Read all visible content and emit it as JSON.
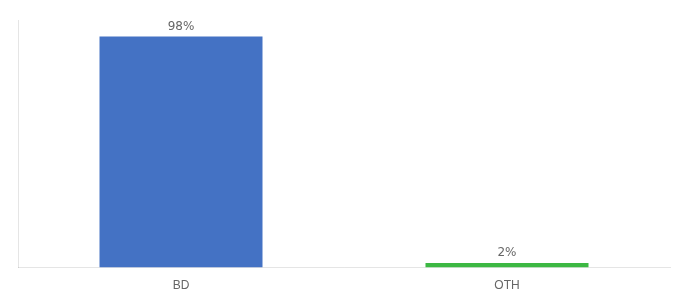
{
  "chart_data": {
    "type": "bar",
    "categories": [
      "BD",
      "OTH"
    ],
    "values": [
      98,
      2
    ],
    "value_labels": [
      "98%",
      "2%"
    ],
    "data_labels": true,
    "colors": [
      "#4472C4",
      "#3CB843"
    ],
    "ylim": [
      0,
      105
    ],
    "grid": false,
    "tick_labels": "x"
  }
}
